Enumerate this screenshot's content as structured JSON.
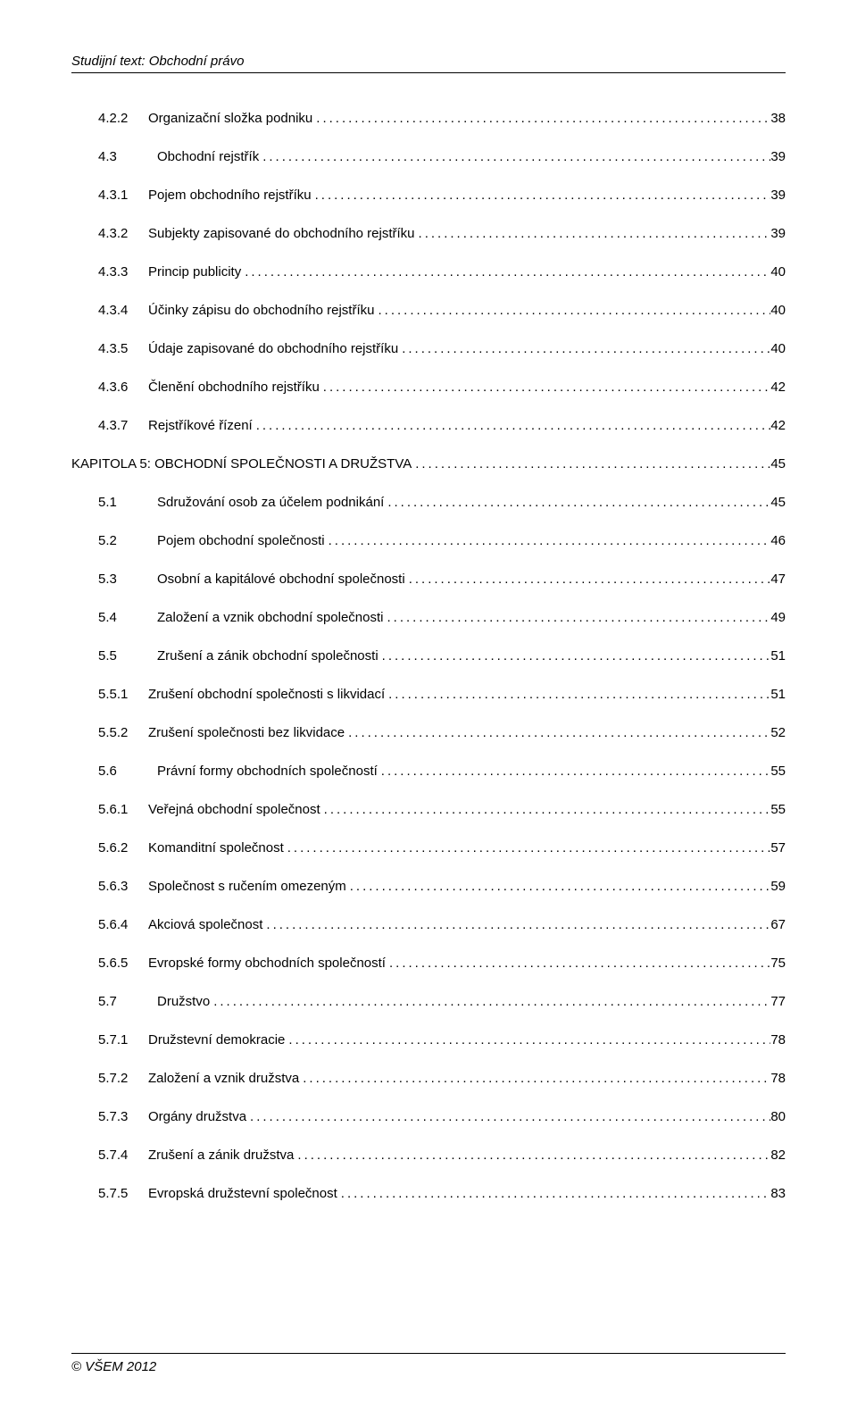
{
  "header": "Studijní text: Obchodní právo",
  "footer": "© VŠEM 2012",
  "toc": [
    {
      "num": "4.2.2",
      "title": "Organizační složka podniku",
      "page": "38",
      "indent": 2
    },
    {
      "num": "4.3",
      "title": "Obchodní rejstřík",
      "page": "39",
      "indent": 1
    },
    {
      "num": "4.3.1",
      "title": "Pojem obchodního rejstříku",
      "page": "39",
      "indent": 2
    },
    {
      "num": "4.3.2",
      "title": "Subjekty zapisované do obchodního rejstříku",
      "page": "39",
      "indent": 2
    },
    {
      "num": "4.3.3",
      "title": "Princip publicity",
      "page": "40",
      "indent": 2
    },
    {
      "num": "4.3.4",
      "title": "Účinky zápisu do obchodního rejstříku",
      "page": "40",
      "indent": 2
    },
    {
      "num": "4.3.5",
      "title": "Údaje zapisované do obchodního rejstříku",
      "page": "40",
      "indent": 2
    },
    {
      "num": "4.3.6",
      "title": "Členění obchodního rejstříku",
      "page": "42",
      "indent": 2
    },
    {
      "num": "4.3.7",
      "title": "Rejstříkové řízení",
      "page": "42",
      "indent": 2
    },
    {
      "num": "KAPITOLA 5: OBCHODNÍ SPOLEČNOSTI A DRUŽSTVA",
      "title": "",
      "page": "45",
      "indent": "chapter"
    },
    {
      "num": "5.1",
      "title": "Sdružování osob za účelem podnikání",
      "page": "45",
      "indent": 1
    },
    {
      "num": "5.2",
      "title": "Pojem obchodní společnosti",
      "page": "46",
      "indent": 1
    },
    {
      "num": "5.3",
      "title": "Osobní a kapitálové obchodní společnosti",
      "page": "47",
      "indent": 1
    },
    {
      "num": "5.4",
      "title": "Založení a vznik obchodní společnosti",
      "page": "49",
      "indent": 1
    },
    {
      "num": "5.5",
      "title": "Zrušení a zánik obchodní společnosti",
      "page": "51",
      "indent": 1
    },
    {
      "num": "5.5.1",
      "title": "Zrušení obchodní společnosti s likvidací",
      "page": "51",
      "indent": 2
    },
    {
      "num": "5.5.2",
      "title": "Zrušení společnosti bez likvidace",
      "page": "52",
      "indent": 2
    },
    {
      "num": "5.6",
      "title": "Právní formy obchodních společností",
      "page": "55",
      "indent": 1
    },
    {
      "num": "5.6.1",
      "title": "Veřejná obchodní společnost",
      "page": "55",
      "indent": 2
    },
    {
      "num": "5.6.2",
      "title": "Komanditní společnost",
      "page": "57",
      "indent": 2
    },
    {
      "num": "5.6.3",
      "title": "Společnost s ručením omezeným",
      "page": "59",
      "indent": 2
    },
    {
      "num": "5.6.4",
      "title": "Akciová společnost",
      "page": "67",
      "indent": 2
    },
    {
      "num": "5.6.5",
      "title": "Evropské formy obchodních společností",
      "page": "75",
      "indent": 2
    },
    {
      "num": "5.7",
      "title": "Družstvo",
      "page": "77",
      "indent": 1
    },
    {
      "num": "5.7.1",
      "title": "Družstevní demokracie",
      "page": "78",
      "indent": 2
    },
    {
      "num": "5.7.2",
      "title": "Založení a vznik družstva",
      "page": "78",
      "indent": 2
    },
    {
      "num": "5.7.3",
      "title": "Orgány družstva",
      "page": "80",
      "indent": 2
    },
    {
      "num": "5.7.4",
      "title": "Zrušení a zánik družstva",
      "page": "82",
      "indent": 2
    },
    {
      "num": "5.7.5",
      "title": "Evropská družstevní společnost",
      "page": "83",
      "indent": 2
    }
  ]
}
